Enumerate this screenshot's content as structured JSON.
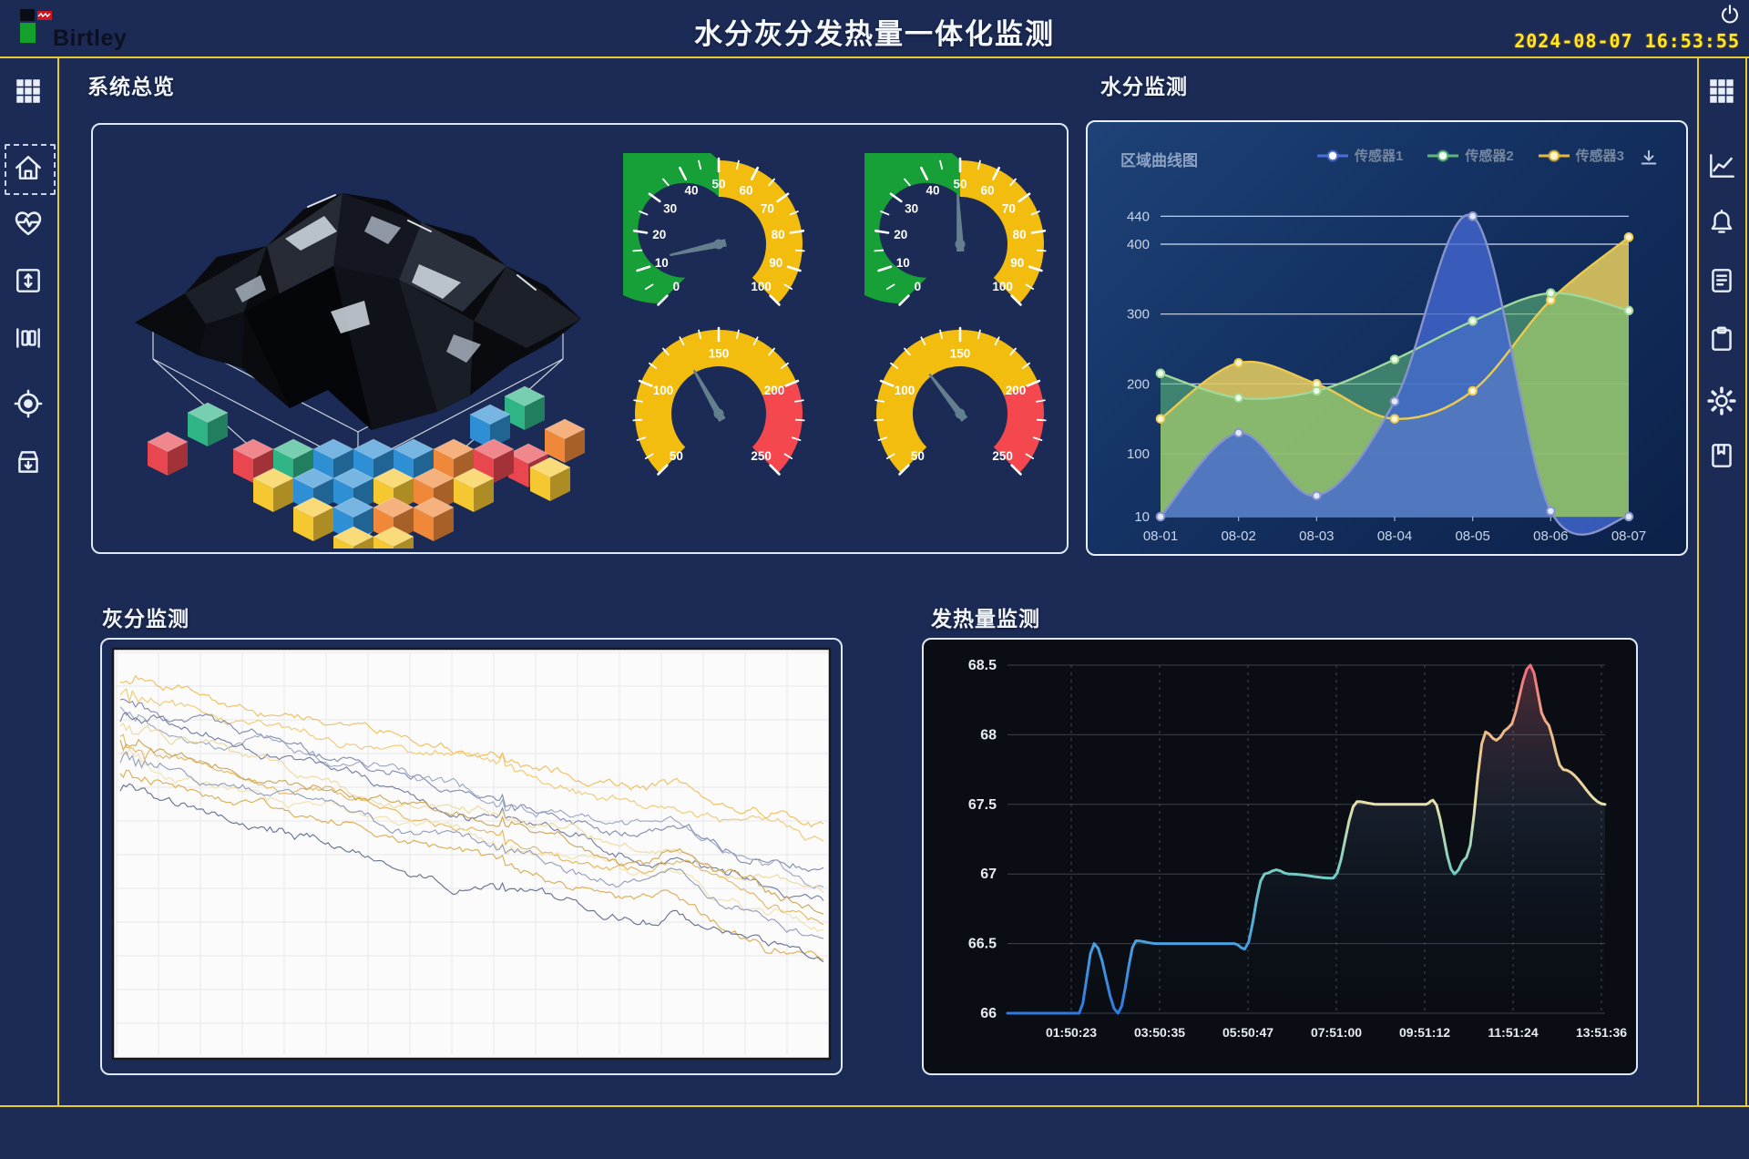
{
  "header": {
    "logo_text": "Birtley",
    "title": "水分灰分发热量一体化监测",
    "datetime": "2024-08-07  16:53:55"
  },
  "sidebar_left": {
    "items": [
      {
        "icon": "apps-grid-icon"
      },
      {
        "icon": "home-icon",
        "selected": true
      },
      {
        "icon": "health-pulse-icon"
      },
      {
        "icon": "vertical-range-icon"
      },
      {
        "icon": "columns-icon"
      },
      {
        "icon": "target-icon"
      },
      {
        "icon": "archive-download-icon"
      }
    ]
  },
  "sidebar_right": {
    "items": [
      {
        "icon": "apps-grid-icon"
      },
      {
        "icon": "trend-chart-icon"
      },
      {
        "icon": "alarm-bell-icon"
      },
      {
        "icon": "report-document-icon"
      },
      {
        "icon": "clipboard-icon"
      },
      {
        "icon": "settings-gear-icon"
      },
      {
        "icon": "bookmark-book-icon"
      }
    ]
  },
  "panels": {
    "overview": {
      "title": "系统总览"
    },
    "moisture": {
      "title": "水分监测",
      "chart_label": "区域曲线图"
    },
    "ash": {
      "title": "灰分监测"
    },
    "calorific": {
      "title": "发热量监测"
    }
  },
  "gauges": [
    {
      "id": "gauge-top-left",
      "min": 0,
      "max": 100,
      "value": 12,
      "zones": [
        {
          "to": 50,
          "color": "#18a038"
        },
        {
          "to": 100,
          "color": "#f2bd0e"
        }
      ],
      "label_step": 10,
      "minor_step": 5,
      "tick_labels": [
        0,
        10,
        20,
        30,
        40,
        50,
        60,
        70,
        80,
        90,
        100
      ]
    },
    {
      "id": "gauge-top-right",
      "min": 0,
      "max": 100,
      "value": 49,
      "zones": [
        {
          "to": 50,
          "color": "#18a038"
        },
        {
          "to": 100,
          "color": "#f2bd0e"
        }
      ],
      "label_step": 10,
      "minor_step": 5,
      "tick_labels": [
        0,
        10,
        20,
        30,
        40,
        50,
        60,
        70,
        80,
        90,
        100
      ]
    },
    {
      "id": "gauge-bottom-left",
      "min": 50,
      "max": 250,
      "value": 128,
      "zones": [
        {
          "to": 200,
          "color": "#f2bd0e"
        },
        {
          "to": 250,
          "color": "#f4484e"
        }
      ],
      "label_step": 50,
      "minor_step": 10,
      "tick_labels": [
        50,
        100,
        150,
        200,
        250
      ]
    },
    {
      "id": "gauge-bottom-right",
      "min": 50,
      "max": 250,
      "value": 122,
      "zones": [
        {
          "to": 200,
          "color": "#f2bd0e"
        },
        {
          "to": 250,
          "color": "#f4484e"
        }
      ],
      "label_step": 50,
      "minor_step": 10,
      "tick_labels": [
        50,
        100,
        150,
        200,
        250
      ]
    }
  ],
  "chart_data": [
    {
      "id": "moisture_area_chart",
      "type": "area",
      "title": "区域曲线图",
      "categories": [
        "08-01",
        "08-02",
        "08-03",
        "08-04",
        "08-05",
        "08-06",
        "08-07"
      ],
      "series": [
        {
          "name": "传感器1",
          "fill": "#4468d2",
          "line": "#8794cc",
          "fill_opacity": 0.8,
          "dot_fill": "#e3eaff",
          "values": [
            10,
            130,
            40,
            175,
            440,
            18,
            10
          ]
        },
        {
          "name": "传感器2",
          "fill": "#5cb878",
          "line": "#9fd898",
          "fill_opacity": 0.6,
          "dot_fill": "#eef9ea",
          "values": [
            215,
            180,
            190,
            235,
            290,
            330,
            305
          ]
        },
        {
          "name": "传感器3",
          "fill": "#e3cb5e",
          "line": "#ecc94f",
          "fill_opacity": 0.88,
          "dot_fill": "#fdf6d8",
          "values": [
            150,
            230,
            200,
            150,
            190,
            320,
            410
          ]
        }
      ],
      "y_ticks": [
        10,
        100,
        200,
        300,
        400,
        440
      ],
      "ylim": [
        10,
        460
      ],
      "legend_position": "top",
      "grid": true
    },
    {
      "id": "calorific_line_chart",
      "type": "line",
      "x_labels": [
        "01:50:23",
        "03:50:35",
        "05:50:47",
        "07:51:00",
        "09:51:12",
        "11:51:24",
        "13:51:36"
      ],
      "y_ticks": [
        66,
        66.5,
        67,
        67.5,
        68,
        68.5
      ],
      "ylim": [
        66,
        68.5
      ],
      "line_gradient": [
        "#ef6b7e",
        "#eebc84",
        "#e6e2a8",
        "#72ccc4",
        "#4aa0e0",
        "#2f7ae0"
      ],
      "points": [
        [
          0,
          66
        ],
        [
          0.12,
          66
        ],
        [
          0.145,
          66.5
        ],
        [
          0.185,
          66
        ],
        [
          0.215,
          66.52
        ],
        [
          0.25,
          66.5
        ],
        [
          0.38,
          66.5
        ],
        [
          0.397,
          66.46
        ],
        [
          0.43,
          67
        ],
        [
          0.45,
          67.03
        ],
        [
          0.47,
          67
        ],
        [
          0.545,
          66.97
        ],
        [
          0.585,
          67.52
        ],
        [
          0.62,
          67.5
        ],
        [
          0.7,
          67.5
        ],
        [
          0.712,
          67.53
        ],
        [
          0.748,
          67
        ],
        [
          0.768,
          67.12
        ],
        [
          0.8,
          68.02
        ],
        [
          0.818,
          67.96
        ],
        [
          0.838,
          68.05
        ],
        [
          0.875,
          68.5
        ],
        [
          0.9,
          68.1
        ],
        [
          0.93,
          67.75
        ],
        [
          1,
          67.5
        ]
      ]
    },
    {
      "id": "ash_multiline_chart",
      "type": "multi-line",
      "background": "#fbfbfc",
      "grid": true,
      "series": [
        {
          "color": "#edbb55",
          "start": 0.07,
          "end": 0.44
        },
        {
          "color": "#f0c668",
          "start": 0.1,
          "end": 0.48
        },
        {
          "color": "#7c87a8",
          "start": 0.12,
          "end": 0.56
        },
        {
          "color": "#98a2bf",
          "start": 0.14,
          "end": 0.58
        },
        {
          "color": "#6b7698",
          "start": 0.17,
          "end": 0.62
        },
        {
          "color": "#ecd79a",
          "start": 0.19,
          "end": 0.6
        },
        {
          "color": "#e3b152",
          "start": 0.21,
          "end": 0.66
        },
        {
          "color": "#f0dfa8",
          "start": 0.24,
          "end": 0.69
        },
        {
          "color": "#8d98b5",
          "start": 0.27,
          "end": 0.72
        },
        {
          "color": "#d9a845",
          "start": 0.3,
          "end": 0.75
        },
        {
          "color": "#5d6888",
          "start": 0.33,
          "end": 0.8
        },
        {
          "color": "#caa24e",
          "start": 0.23,
          "end": 0.63
        }
      ]
    }
  ],
  "coal_visualization": {
    "cube_palette": {
      "red": "#e8474f",
      "teal": "#2fb486",
      "blue": "#2e8fd4",
      "yellow": "#f5c832",
      "orange": "#ef8939",
      "green": "#3cb84f"
    }
  },
  "colors": {
    "background": "#1c2b55",
    "accent_yellow": "#e9c930",
    "panel_border": "#dde8f8",
    "clock_yellow": "#ffe920",
    "icon": "#e9eff9"
  }
}
